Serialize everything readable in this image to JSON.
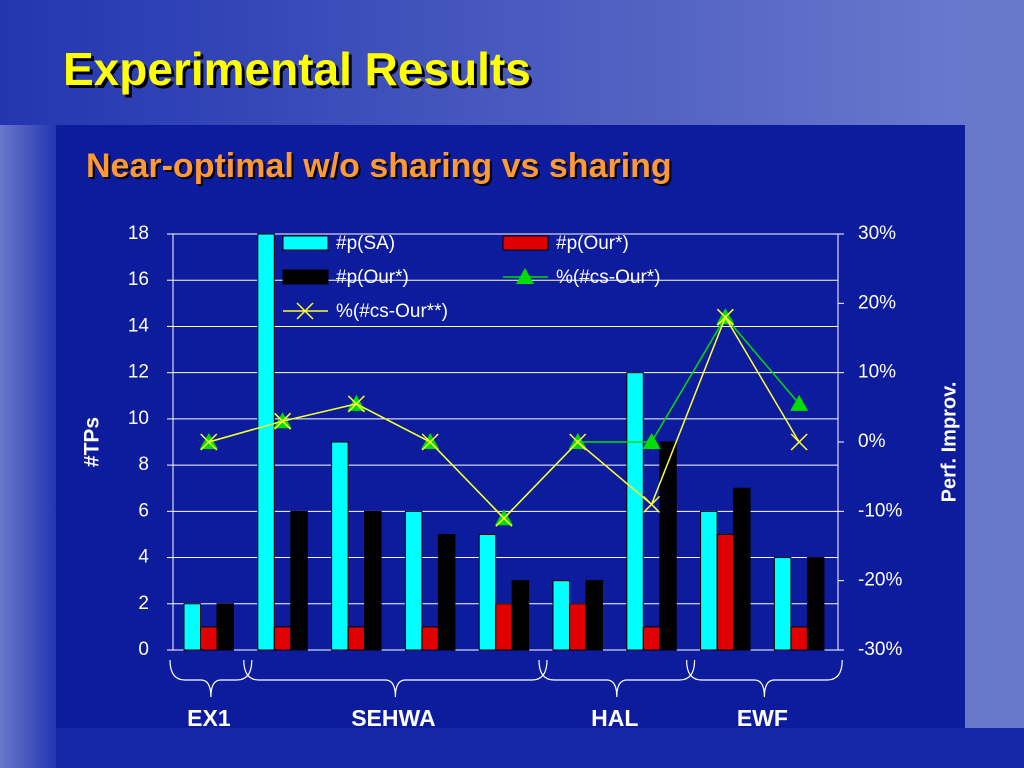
{
  "title": "Experimental Results",
  "subtitle": "Near-optimal w/o sharing vs sharing",
  "chart_data": {
    "type": "bar",
    "categories": [
      null,
      null,
      null,
      null,
      null,
      null,
      null,
      null,
      null
    ],
    "groups": [
      {
        "label": "EX1",
        "size": 1
      },
      {
        "label": "SEHWA",
        "size": 4
      },
      {
        "label": "HAL",
        "size": 2
      },
      {
        "label": "EWF",
        "size": 2
      }
    ],
    "y_label": "#TPs",
    "y2_label": "Perf. Improv.",
    "ylim": [
      0,
      18
    ],
    "yticks": [
      0,
      2,
      4,
      6,
      8,
      10,
      12,
      14,
      16,
      18
    ],
    "y2lim": [
      -30,
      30
    ],
    "y2ticks": [
      {
        "value": -30,
        "label": "-30%"
      },
      {
        "value": -20,
        "label": "-20%"
      },
      {
        "value": -10,
        "label": "-10%"
      },
      {
        "value": 0,
        "label": "0%"
      },
      {
        "value": 10,
        "label": "10%"
      },
      {
        "value": 20,
        "label": "20%"
      },
      {
        "value": 30,
        "label": "30%"
      }
    ],
    "grid": true,
    "series": [
      {
        "name": "#p(SA)",
        "type": "bar",
        "color": "#00ffff",
        "values": [
          2,
          18,
          9,
          6,
          5,
          3,
          12,
          6,
          4
        ]
      },
      {
        "name": "#p(Our*)",
        "type": "bar",
        "color": "#e00000",
        "values": [
          1,
          1,
          1,
          1,
          2,
          2,
          1,
          5,
          1
        ]
      },
      {
        "name": "#p(Our*)",
        "type": "bar",
        "color": "#000000",
        "values": [
          2,
          6,
          6,
          5,
          3,
          3,
          9,
          7,
          4
        ]
      },
      {
        "name": "%(#cs-Our*)",
        "type": "line",
        "axis": "y2",
        "marker": "triangle",
        "color": "#00dd00",
        "values": [
          0,
          3,
          5.5,
          0,
          -11,
          0,
          0,
          18,
          5.5
        ]
      },
      {
        "name": "%(#cs-Our**)",
        "type": "line",
        "axis": "y2",
        "marker": "x",
        "color": "#ffff33",
        "values": [
          0,
          3,
          5.5,
          0,
          -11,
          0,
          -9,
          18,
          0
        ]
      }
    ]
  }
}
